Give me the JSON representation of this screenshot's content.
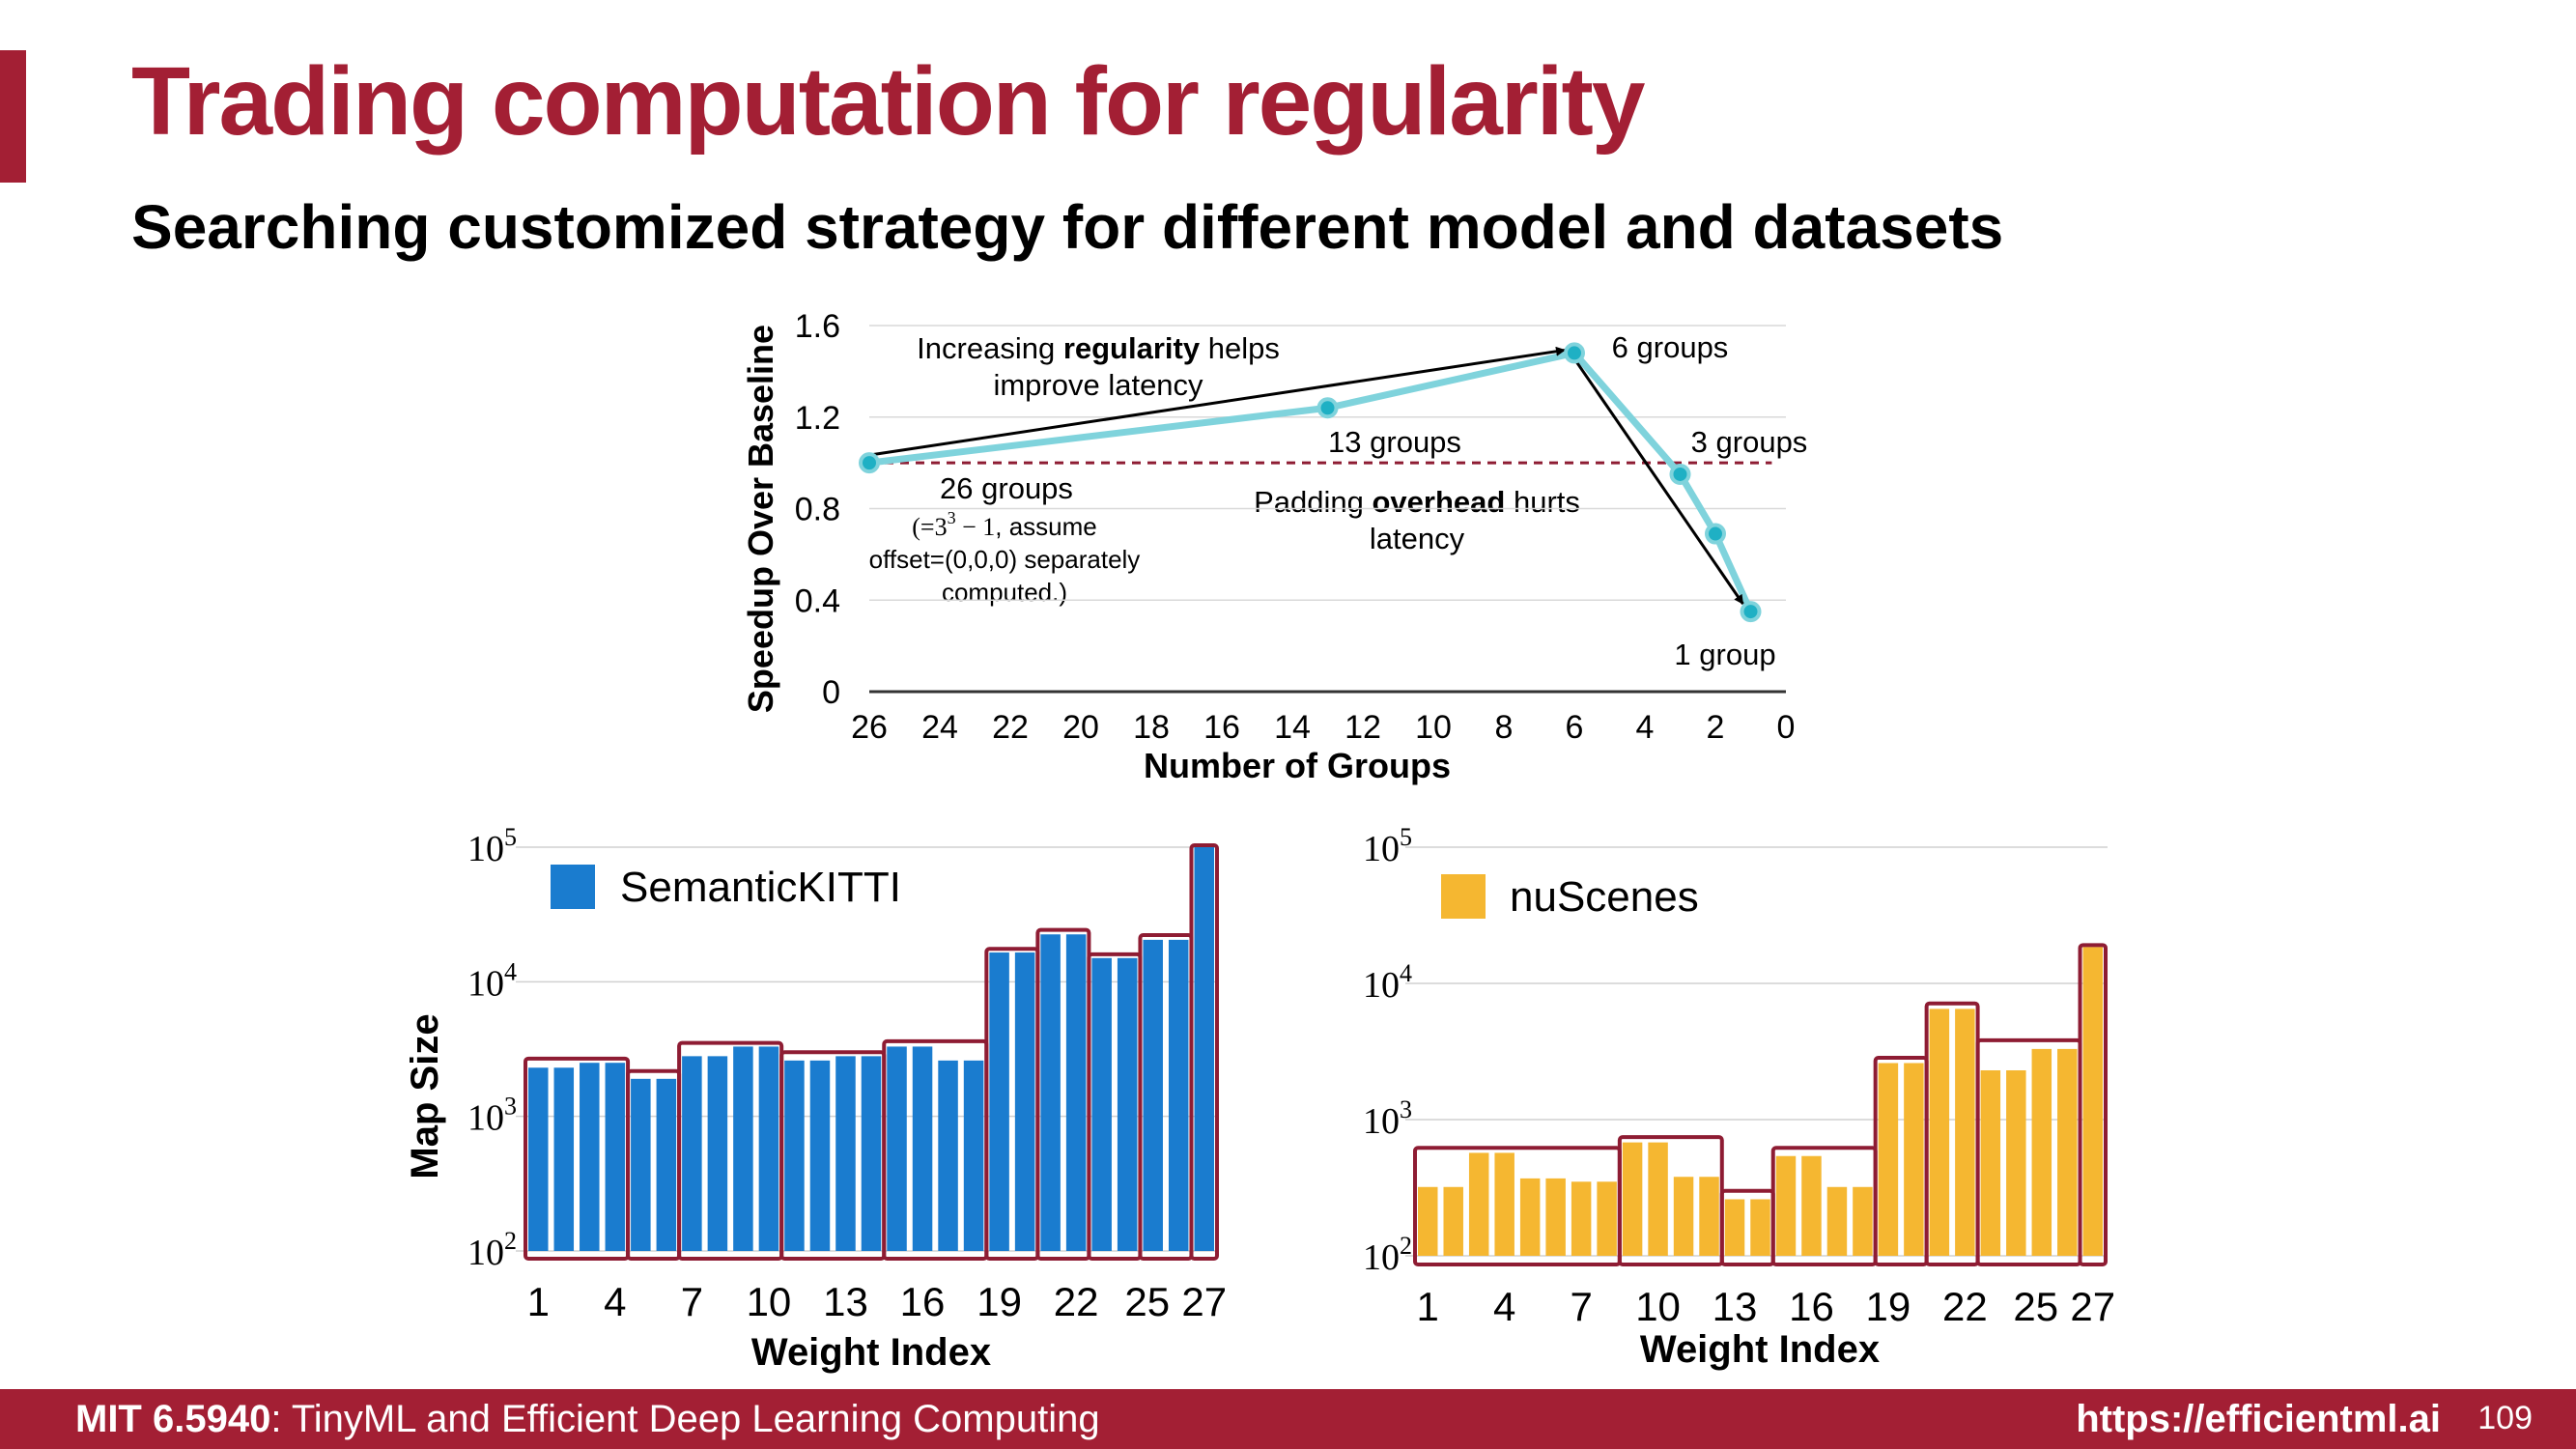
{
  "slide": {
    "title": "Trading computation for regularity",
    "subtitle": "Searching customized strategy for different model and datasets"
  },
  "footer": {
    "course_code": "MIT 6.5940",
    "course_name": ": TinyML and Efficient Deep Learning Computing",
    "url": "https://efficientml.ai",
    "page_number": "109"
  },
  "colors": {
    "accent": "#a31f34",
    "line": "#7fd3dc",
    "marker": "#1fb0c4",
    "semantic_bar": "#1a7ccf",
    "nuscenes_bar": "#f5b731",
    "group_box": "#8e1c33"
  },
  "chart_data": [
    {
      "type": "line",
      "title": "",
      "xlabel": "Number of Groups",
      "ylabel": "Speedup Over Baseline",
      "xlim": [
        26,
        0
      ],
      "ylim": [
        0,
        1.6
      ],
      "xticks": [
        "26",
        "24",
        "22",
        "20",
        "18",
        "16",
        "14",
        "12",
        "10",
        "8",
        "6",
        "4",
        "2",
        "0"
      ],
      "yticks": [
        "0",
        "0.4",
        "0.8",
        "1.2",
        "1.6"
      ],
      "series": [
        {
          "name": "speedup",
          "x": [
            26,
            13,
            6,
            3,
            2,
            1
          ],
          "y": [
            1.0,
            1.24,
            1.48,
            0.95,
            0.69,
            0.35
          ]
        }
      ],
      "baseline": 1.0,
      "point_labels": [
        "26 groups",
        "13 groups",
        "6 groups",
        "3 groups",
        "1 group"
      ],
      "annotations": {
        "top_line1_pre": "Increasing ",
        "top_line1_bold": "regularity",
        "top_line1_post": " helps",
        "top_line2": "improve latency",
        "mid_line1_pre": "Padding ",
        "mid_line1_bold": "overhead",
        "mid_line1_post": " hurts",
        "mid_line2": "latency",
        "note_line1_pre": "(=3",
        "note_line1_sup": "3",
        "note_line1_mid": " − 1",
        "note_line1_post": ", assume",
        "note_line2": "offset=(0,0,0) separately",
        "note_line3": "computed.)"
      }
    },
    {
      "type": "bar",
      "title": "",
      "legend": "SemanticKITTI",
      "xlabel": "Weight Index",
      "ylabel": "Map Size",
      "yscale": "log",
      "ylim": [
        100,
        100000
      ],
      "yticks": [
        {
          "base": "10",
          "exp": "2"
        },
        {
          "base": "10",
          "exp": "3"
        },
        {
          "base": "10",
          "exp": "4"
        },
        {
          "base": "10",
          "exp": "5"
        }
      ],
      "xticks": [
        "1",
        "4",
        "7",
        "10",
        "13",
        "16",
        "19",
        "22",
        "25",
        "27"
      ],
      "values": [
        2300,
        2300,
        2500,
        2500,
        1900,
        1900,
        2800,
        2800,
        3300,
        3300,
        2600,
        2600,
        2800,
        2800,
        3300,
        3300,
        2600,
        2600,
        16500,
        16500,
        22500,
        22500,
        15000,
        15000,
        20500,
        20500,
        100000
      ],
      "groups": [
        {
          "start": 1,
          "end": 4,
          "value": 2600
        },
        {
          "start": 5,
          "end": 6,
          "value": 2100
        },
        {
          "start": 7,
          "end": 10,
          "value": 3400
        },
        {
          "start": 11,
          "end": 14,
          "value": 2900
        },
        {
          "start": 15,
          "end": 18,
          "value": 3500
        },
        {
          "start": 19,
          "end": 20,
          "value": 17000
        },
        {
          "start": 21,
          "end": 22,
          "value": 23500
        },
        {
          "start": 23,
          "end": 24,
          "value": 15500
        },
        {
          "start": 25,
          "end": 26,
          "value": 21500
        },
        {
          "start": 27,
          "end": 27,
          "value": 100000
        }
      ]
    },
    {
      "type": "bar",
      "title": "",
      "legend": "nuScenes",
      "xlabel": "Weight Index",
      "ylabel": "",
      "yscale": "log",
      "ylim": [
        100,
        100000
      ],
      "yticks": [
        {
          "base": "10",
          "exp": "2"
        },
        {
          "base": "10",
          "exp": "3"
        },
        {
          "base": "10",
          "exp": "4"
        },
        {
          "base": "10",
          "exp": "5"
        }
      ],
      "xticks": [
        "1",
        "4",
        "7",
        "10",
        "13",
        "16",
        "19",
        "22",
        "25",
        "27"
      ],
      "values": [
        320,
        320,
        570,
        570,
        370,
        370,
        350,
        350,
        680,
        680,
        380,
        380,
        260,
        260,
        540,
        540,
        320,
        320,
        2600,
        2600,
        6500,
        6500,
        2300,
        2300,
        3300,
        3300,
        18500
      ],
      "groups": [
        {
          "start": 1,
          "end": 8,
          "value": 600
        },
        {
          "start": 9,
          "end": 12,
          "value": 720
        },
        {
          "start": 13,
          "end": 14,
          "value": 290
        },
        {
          "start": 15,
          "end": 18,
          "value": 600
        },
        {
          "start": 19,
          "end": 20,
          "value": 2750
        },
        {
          "start": 21,
          "end": 22,
          "value": 6900
        },
        {
          "start": 23,
          "end": 26,
          "value": 3700
        },
        {
          "start": 27,
          "end": 27,
          "value": 18500
        }
      ]
    }
  ]
}
